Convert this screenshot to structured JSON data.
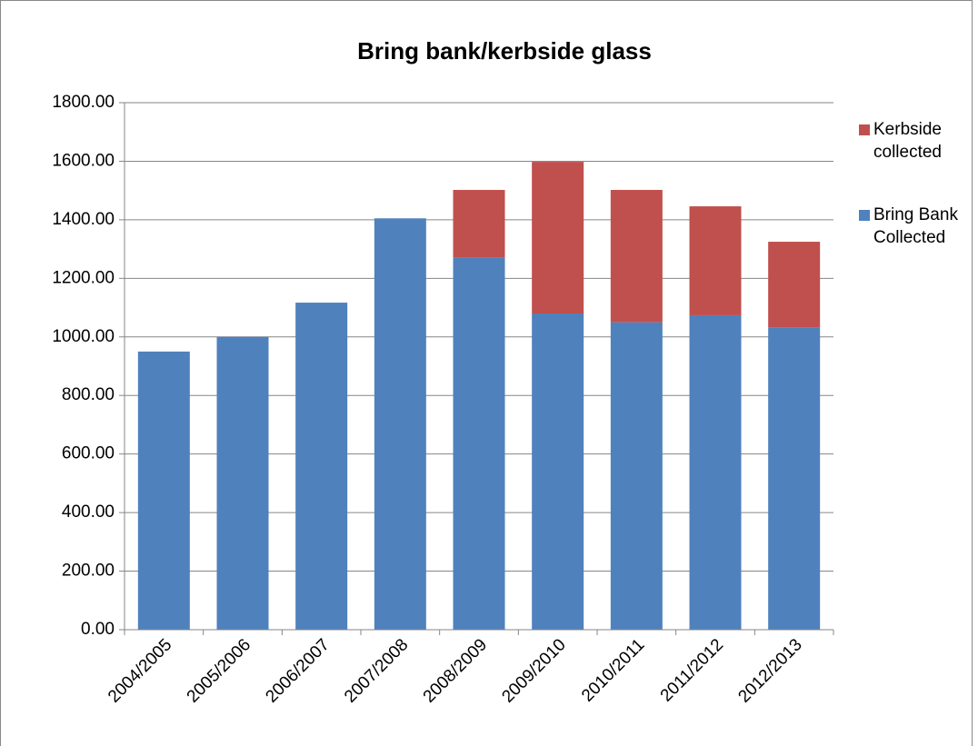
{
  "chart_data": {
    "type": "stacked_bar",
    "title": "Bring bank/kerbside glass",
    "categories": [
      "2004/2005",
      "2005/2006",
      "2006/2007",
      "2007/2008",
      "2008/2009",
      "2009/2010",
      "2010/2011",
      "2011/2012",
      "2012/2013"
    ],
    "series": [
      {
        "name": "Bring Bank Collected",
        "color": "#4f81bd",
        "values": [
          950,
          1000,
          1117,
          1405,
          1270,
          1080,
          1050,
          1074,
          1033
        ]
      },
      {
        "name": "Kerbside collected",
        "color": "#c0504d",
        "values": [
          0,
          0,
          0,
          0,
          232,
          518,
          452,
          372,
          292
        ]
      }
    ],
    "ylim": [
      0,
      1800
    ],
    "yticks": [
      {
        "value": 0,
        "label": "0.00"
      },
      {
        "value": 200,
        "label": "200.00"
      },
      {
        "value": 400,
        "label": "400.00"
      },
      {
        "value": 600,
        "label": "600.00"
      },
      {
        "value": 800,
        "label": "800.00"
      },
      {
        "value": 1000,
        "label": "1000.00"
      },
      {
        "value": 1200,
        "label": "1200.00"
      },
      {
        "value": 1400,
        "label": "1400.00"
      },
      {
        "value": 1600,
        "label": "1600.00"
      },
      {
        "value": 1800,
        "label": "1800.00"
      }
    ],
    "grid": true,
    "legend": "right"
  }
}
